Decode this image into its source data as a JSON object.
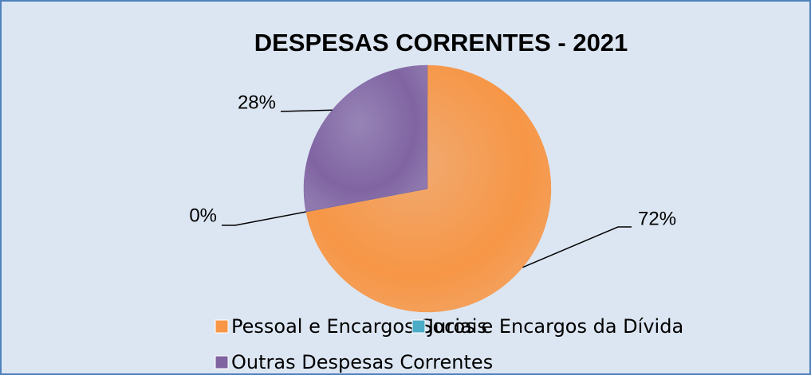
{
  "chart_data": {
    "type": "pie",
    "title": "DESPESAS CORRENTES - 2021",
    "categories": [
      "Pessoal e Encargos Sociais",
      "Juros e Encargos da Dívida",
      "Outras Despesas Correntes"
    ],
    "values": [
      72,
      0,
      28
    ],
    "value_labels": [
      "72%",
      "0%",
      "28%"
    ],
    "colors": [
      "#f79646",
      "#4bacc6",
      "#8064a2"
    ],
    "legend": "bottom"
  }
}
